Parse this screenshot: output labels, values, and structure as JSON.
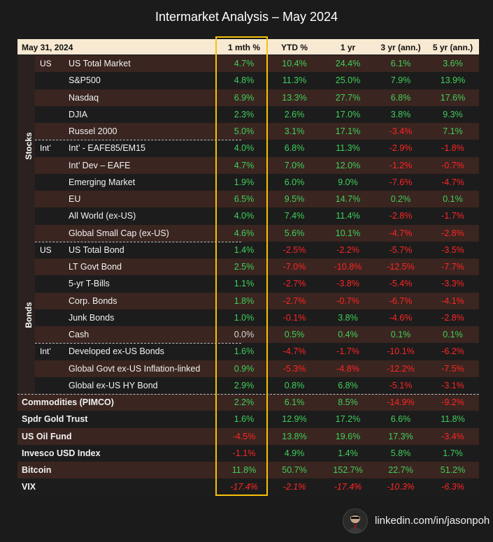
{
  "title": "Intermarket Analysis – May 2024",
  "header": {
    "date": "May 31, 2024",
    "cols": [
      "1 mth %",
      "YTD %",
      "1 yr",
      "3 yr (ann.)",
      "5 yr  (ann.)"
    ]
  },
  "groups": {
    "stocks": "Stocks",
    "bonds": "Bonds"
  },
  "footer": {
    "link": "linkedin.com/in/jasonpoh"
  },
  "colors": {
    "positive": "#3fd05a",
    "negative": "#ff2525",
    "highlight": "#f6c20a",
    "header_bg": "#f8e9d2"
  },
  "chart_data": {
    "type": "table",
    "title": "Intermarket Analysis – May 2024",
    "columns": [
      "1 mth %",
      "YTD %",
      "1 yr",
      "3 yr (ann.)",
      "5 yr  (ann.)"
    ],
    "rows": [
      {
        "group": "Stocks",
        "region": "US",
        "name": "US Total Market",
        "values": [
          "4.7%",
          "10.4%",
          "24.4%",
          "6.1%",
          "3.6%"
        ]
      },
      {
        "group": "Stocks",
        "region": "",
        "name": "S&P500",
        "values": [
          "4.8%",
          "11.3%",
          "25.0%",
          "7.9%",
          "13.9%"
        ]
      },
      {
        "group": "Stocks",
        "region": "",
        "name": "Nasdaq",
        "values": [
          "6.9%",
          "13.3%",
          "27.7%",
          "6.8%",
          "17.6%"
        ]
      },
      {
        "group": "Stocks",
        "region": "",
        "name": "DJIA",
        "values": [
          "2.3%",
          "2.6%",
          "17.0%",
          "3.8%",
          "9.3%"
        ]
      },
      {
        "group": "Stocks",
        "region": "",
        "name": "Russel 2000",
        "values": [
          "5.0%",
          "3.1%",
          "17.1%",
          "-3.4%",
          "7.1%"
        ]
      },
      {
        "group": "Stocks",
        "region": "Int’",
        "name": "Int’ - EAFE85/EM15",
        "values": [
          "4.0%",
          "6.8%",
          "11.3%",
          "-2.9%",
          "-1.8%"
        ]
      },
      {
        "group": "Stocks",
        "region": "",
        "name": "Int’ Dev – EAFE",
        "values": [
          "4.7%",
          "7.0%",
          "12.0%",
          "-1.2%",
          "-0.7%"
        ]
      },
      {
        "group": "Stocks",
        "region": "",
        "name": "Emerging Market",
        "values": [
          "1.9%",
          "6.0%",
          "9.0%",
          "-7.6%",
          "-4.7%"
        ]
      },
      {
        "group": "Stocks",
        "region": "",
        "name": "EU",
        "values": [
          "6.5%",
          "9.5%",
          "14.7%",
          "0.2%",
          "0.1%"
        ]
      },
      {
        "group": "Stocks",
        "region": "",
        "name": "All World (ex-US)",
        "values": [
          "4.0%",
          "7.4%",
          "11.4%",
          "-2.8%",
          "-1.7%"
        ]
      },
      {
        "group": "Stocks",
        "region": "",
        "name": "Global Small Cap (ex-US)",
        "values": [
          "4.6%",
          "5.6%",
          "10.1%",
          "-4.7%",
          "-2.8%"
        ]
      },
      {
        "group": "Bonds",
        "region": "US",
        "name": "US Total Bond",
        "values": [
          "1.4%",
          "-2.5%",
          "-2.2%",
          "-5.7%",
          "-3.5%"
        ]
      },
      {
        "group": "Bonds",
        "region": "",
        "name": "LT Govt Bond",
        "values": [
          "2.5%",
          "-7.0%",
          "-10.8%",
          "-12.5%",
          "-7.7%"
        ]
      },
      {
        "group": "Bonds",
        "region": "",
        "name": "5-yr T-Bills",
        "values": [
          "1.1%",
          "-2.7%",
          "-3.8%",
          "-5.4%",
          "-3.3%"
        ]
      },
      {
        "group": "Bonds",
        "region": "",
        "name": "Corp. Bonds",
        "values": [
          "1.8%",
          "-2.7%",
          "-0.7%",
          "-6.7%",
          "-4.1%"
        ]
      },
      {
        "group": "Bonds",
        "region": "",
        "name": "Junk Bonds",
        "values": [
          "1.0%",
          "-0.1%",
          "3.8%",
          "-4.6%",
          "-2.8%"
        ]
      },
      {
        "group": "Bonds",
        "region": "",
        "name": "Cash",
        "values": [
          "0.0%",
          "0.5%",
          "0.4%",
          "0.1%",
          "0.1%"
        ]
      },
      {
        "group": "Bonds",
        "region": "Int’",
        "name": "Developed ex-US Bonds",
        "values": [
          "1.6%",
          "-4.7%",
          "-1.7%",
          "-10.1%",
          "-6.2%"
        ]
      },
      {
        "group": "Bonds",
        "region": "",
        "name": "Global Govt ex-US Inflation-linked",
        "values": [
          "0.9%",
          "-5.3%",
          "-4.8%",
          "-12.2%",
          "-7.5%"
        ]
      },
      {
        "group": "Bonds",
        "region": "",
        "name": "Global ex-US HY Bond",
        "values": [
          "2.9%",
          "0.8%",
          "6.8%",
          "-5.1%",
          "-3.1%"
        ]
      },
      {
        "group": "",
        "region": "",
        "name": "Commodities (PIMCO)",
        "values": [
          "2.2%",
          "6.1%",
          "8.5%",
          "-14.9%",
          "-9.2%"
        ]
      },
      {
        "group": "",
        "region": "",
        "name": "Spdr Gold Trust",
        "values": [
          "1.6%",
          "12.9%",
          "17.2%",
          "6.6%",
          "11.8%"
        ]
      },
      {
        "group": "",
        "region": "",
        "name": "US Oil Fund",
        "values": [
          "-4.5%",
          "13.8%",
          "19.6%",
          "17.3%",
          "-3.4%"
        ]
      },
      {
        "group": "",
        "region": "",
        "name": "Invesco USD Index",
        "values": [
          "-1.1%",
          "4.9%",
          "1.4%",
          "5.8%",
          "1.7%"
        ]
      },
      {
        "group": "",
        "region": "",
        "name": "Bitcoin",
        "values": [
          "11.8%",
          "50.7%",
          "152.7%",
          "22.7%",
          "51.2%"
        ]
      },
      {
        "group": "",
        "region": "",
        "name": "VIX",
        "values": [
          "-17.4%",
          "-2.1%",
          "-17.4%",
          "-10.3%",
          "-6.3%"
        ]
      }
    ]
  }
}
